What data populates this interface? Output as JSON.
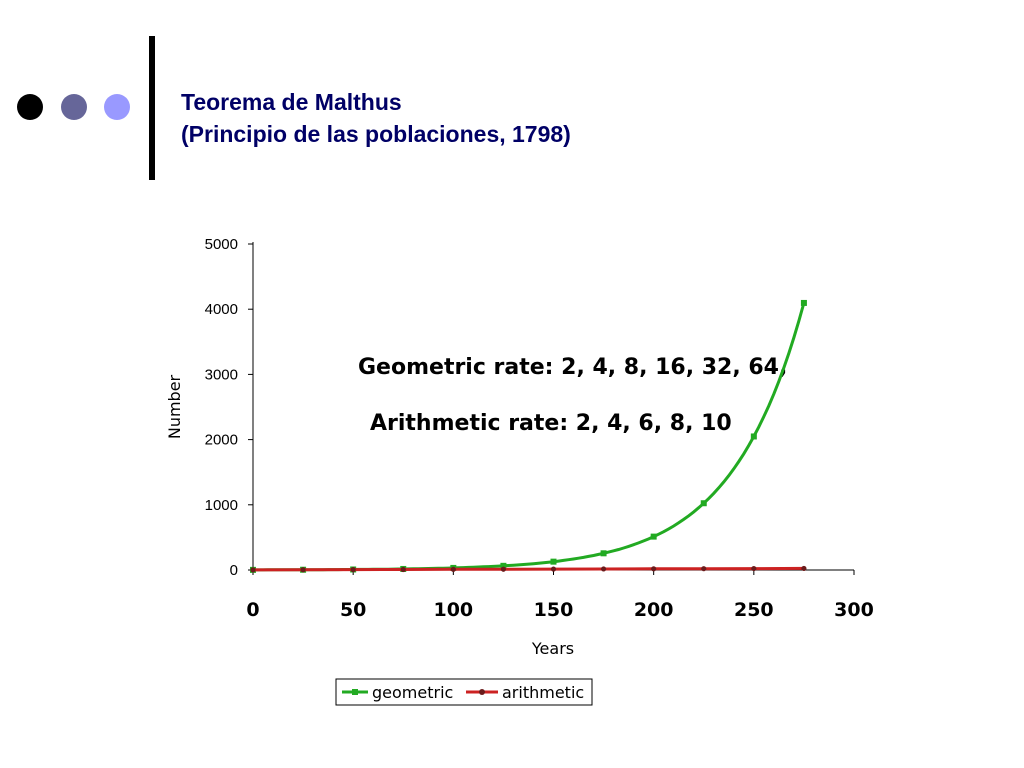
{
  "slide": {
    "title_line1": "Teorema de Malthus",
    "title_line2": "(Principio de las poblaciones, 1798)",
    "title_color": "#000066",
    "dot_colors": [
      "#000000",
      "#666699",
      "#9999ff"
    ],
    "bar_color": "#000000"
  },
  "chart_data": {
    "type": "line",
    "xlabel": "Years",
    "ylabel": "Number",
    "xlim": [
      0,
      300
    ],
    "ylim": [
      0,
      5000
    ],
    "xticks": [
      0,
      50,
      100,
      150,
      200,
      250,
      300
    ],
    "yticks": [
      0,
      1000,
      2000,
      3000,
      4000,
      5000
    ],
    "grid": false,
    "legend_position": "bottom",
    "annotations": [
      "Geometric rate: 2, 4, 8, 16, 32, 64,",
      "Arithmetic rate: 2, 4, 6, 8, 10"
    ],
    "series": [
      {
        "name": "geometric",
        "color": "#22aa22",
        "x": [
          0,
          25,
          50,
          75,
          100,
          125,
          150,
          175,
          200,
          225,
          250,
          275
        ],
        "values": [
          2,
          4,
          8,
          16,
          32,
          64,
          128,
          256,
          512,
          1024,
          2048,
          4096
        ]
      },
      {
        "name": "arithmetic",
        "color": "#cc2222",
        "x": [
          0,
          25,
          50,
          75,
          100,
          125,
          150,
          175,
          200,
          225,
          250,
          275
        ],
        "values": [
          2,
          4,
          6,
          8,
          10,
          12,
          14,
          16,
          18,
          20,
          22,
          24
        ]
      }
    ]
  }
}
